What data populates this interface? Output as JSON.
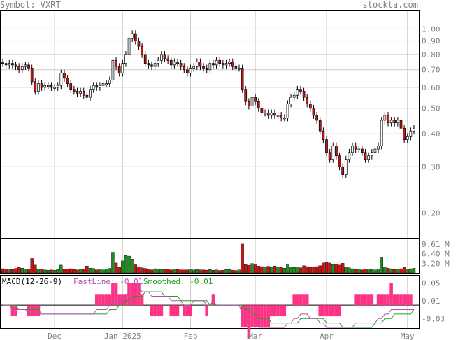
{
  "header": {
    "symbol_label": "Symbol: VXRT",
    "brand": "stockta.com"
  },
  "colors": {
    "up": "#228b22",
    "down": "#cc1111",
    "hist": "#ff3385",
    "fast": "#b050b0",
    "slow": "#20a020",
    "grid": "#cccccc",
    "text": "#808080"
  },
  "chart_data": [
    {
      "type": "candlestick",
      "title": "",
      "y_scale": "log",
      "ylim": [
        0.165,
        1.14
      ],
      "y_ticks": [
        1.0,
        0.9,
        0.8,
        0.7,
        0.6,
        0.5,
        0.4,
        0.3,
        0.2
      ],
      "y_tick_labels": [
        "1.00",
        "0.90",
        "0.80",
        "0.70",
        "0.60",
        "0.50",
        "0.40",
        "0.30",
        "0.20"
      ],
      "x_tick_labels": [
        "Dec",
        "Jan 2025",
        "Feb",
        "Mar",
        "Apr",
        "May"
      ],
      "x_tick_index": [
        16,
        37,
        58,
        78,
        100,
        125
      ],
      "close": [
        0.74,
        0.73,
        0.74,
        0.73,
        0.72,
        0.7,
        0.72,
        0.73,
        0.71,
        0.63,
        0.58,
        0.62,
        0.6,
        0.61,
        0.61,
        0.6,
        0.6,
        0.61,
        0.68,
        0.65,
        0.62,
        0.59,
        0.58,
        0.57,
        0.58,
        0.56,
        0.55,
        0.59,
        0.61,
        0.6,
        0.61,
        0.62,
        0.62,
        0.64,
        0.76,
        0.72,
        0.68,
        0.74,
        0.8,
        0.92,
        0.96,
        0.9,
        0.86,
        0.8,
        0.74,
        0.73,
        0.72,
        0.74,
        0.76,
        0.8,
        0.77,
        0.76,
        0.73,
        0.75,
        0.74,
        0.72,
        0.7,
        0.68,
        0.71,
        0.72,
        0.75,
        0.72,
        0.71,
        0.7,
        0.74,
        0.73,
        0.76,
        0.74,
        0.73,
        0.74,
        0.75,
        0.72,
        0.71,
        0.71,
        0.59,
        0.53,
        0.51,
        0.55,
        0.53,
        0.5,
        0.48,
        0.48,
        0.47,
        0.48,
        0.47,
        0.47,
        0.46,
        0.46,
        0.52,
        0.55,
        0.56,
        0.59,
        0.58,
        0.55,
        0.52,
        0.5,
        0.47,
        0.45,
        0.41,
        0.38,
        0.34,
        0.32,
        0.36,
        0.33,
        0.3,
        0.28,
        0.32,
        0.34,
        0.36,
        0.35,
        0.35,
        0.34,
        0.32,
        0.33,
        0.34,
        0.35,
        0.36,
        0.45,
        0.47,
        0.44,
        0.45,
        0.44,
        0.45,
        0.42,
        0.38,
        0.39,
        0.41,
        0.42
      ],
      "open": [
        0.75,
        0.74,
        0.73,
        0.74,
        0.73,
        0.72,
        0.7,
        0.72,
        0.73,
        0.71,
        0.63,
        0.58,
        0.62,
        0.6,
        0.61,
        0.61,
        0.6,
        0.6,
        0.61,
        0.68,
        0.65,
        0.62,
        0.59,
        0.58,
        0.57,
        0.58,
        0.56,
        0.55,
        0.59,
        0.61,
        0.6,
        0.61,
        0.62,
        0.62,
        0.64,
        0.76,
        0.72,
        0.68,
        0.74,
        0.8,
        0.92,
        0.96,
        0.9,
        0.86,
        0.8,
        0.74,
        0.73,
        0.72,
        0.74,
        0.76,
        0.8,
        0.77,
        0.76,
        0.73,
        0.75,
        0.74,
        0.72,
        0.7,
        0.68,
        0.71,
        0.72,
        0.75,
        0.72,
        0.71,
        0.7,
        0.74,
        0.73,
        0.76,
        0.74,
        0.73,
        0.74,
        0.75,
        0.72,
        0.71,
        0.71,
        0.59,
        0.53,
        0.51,
        0.55,
        0.53,
        0.5,
        0.48,
        0.48,
        0.47,
        0.48,
        0.47,
        0.47,
        0.46,
        0.46,
        0.52,
        0.55,
        0.56,
        0.59,
        0.58,
        0.55,
        0.52,
        0.5,
        0.47,
        0.45,
        0.41,
        0.38,
        0.34,
        0.32,
        0.36,
        0.33,
        0.3,
        0.28,
        0.32,
        0.34,
        0.36,
        0.35,
        0.35,
        0.34,
        0.32,
        0.33,
        0.34,
        0.35,
        0.36,
        0.45,
        0.47,
        0.44,
        0.45,
        0.44,
        0.45,
        0.42,
        0.38,
        0.39,
        0.41
      ]
    },
    {
      "type": "bar",
      "title": "",
      "ylim": [
        0,
        11
      ],
      "y_ticks": [
        9.61,
        6.4,
        3.2
      ],
      "y_tick_labels": [
        "9.61 M",
        "6.40 M",
        "3.20 M"
      ],
      "values": [
        1.4,
        1.2,
        1.3,
        1.1,
        1.5,
        2.0,
        1.6,
        1.3,
        1.2,
        4.8,
        2.6,
        1.3,
        1.1,
        1.0,
        0.9,
        1.0,
        0.9,
        1.1,
        2.6,
        1.3,
        1.2,
        1.4,
        1.1,
        1.0,
        1.3,
        1.2,
        2.3,
        1.6,
        1.5,
        1.0,
        1.2,
        1.0,
        1.2,
        1.5,
        6.9,
        3.3,
        1.8,
        4.0,
        5.8,
        5.6,
        4.6,
        2.7,
        2.0,
        1.7,
        1.5,
        1.2,
        1.0,
        1.4,
        1.3,
        1.2,
        1.1,
        1.2,
        1.0,
        1.3,
        1.1,
        1.0,
        1.0,
        1.0,
        1.2,
        1.0,
        1.1,
        1.0,
        1.0,
        0.9,
        1.1,
        0.9,
        1.0,
        0.8,
        0.9,
        1.1,
        1.1,
        0.9,
        0.8,
        1.0,
        9.61,
        2.8,
        2.5,
        3.1,
        2.7,
        2.3,
        2.1,
        2.0,
        2.2,
        1.9,
        2.3,
        2.0,
        1.8,
        1.6,
        3.0,
        2.0,
        1.8,
        2.0,
        1.7,
        2.4,
        2.1,
        2.0,
        1.9,
        2.1,
        2.4,
        3.3,
        3.5,
        3.3,
        2.8,
        3.0,
        2.6,
        3.2,
        2.0,
        1.7,
        1.4,
        1.1,
        1.2,
        1.0,
        1.2,
        1.3,
        1.1,
        1.0,
        1.3,
        5.2,
        2.0,
        1.6,
        1.4,
        1.1,
        1.2,
        1.4,
        1.8,
        1.3,
        1.4,
        1.6
      ]
    },
    {
      "type": "line",
      "title": "MACD(12-26-9)",
      "legend": [
        "FastLine: -0.01",
        "Smoothed: -0.01"
      ],
      "ylim": [
        -0.05,
        0.06
      ],
      "y_ticks": [
        0.05,
        0.01,
        -0.03
      ],
      "y_tick_labels": [
        "0.05",
        "0.01",
        "-0.03"
      ],
      "fast": [
        0.0,
        0.0,
        0.0,
        -0.01,
        -0.01,
        -0.01,
        -0.01,
        -0.01,
        -0.02,
        -0.02,
        -0.02,
        -0.02,
        -0.02,
        -0.02,
        -0.02,
        -0.02,
        -0.02,
        -0.02,
        -0.02,
        -0.02,
        -0.02,
        -0.02,
        -0.02,
        -0.02,
        -0.02,
        -0.02,
        -0.02,
        -0.02,
        -0.02,
        -0.01,
        -0.01,
        -0.01,
        -0.01,
        0.0,
        0.01,
        0.01,
        0.01,
        0.01,
        0.02,
        0.03,
        0.04,
        0.04,
        0.04,
        0.03,
        0.03,
        0.03,
        0.02,
        0.02,
        0.02,
        0.02,
        0.02,
        0.02,
        0.01,
        0.01,
        0.01,
        0.01,
        0.0,
        0.0,
        0.0,
        0.01,
        0.01,
        0.01,
        0.01,
        0.0,
        0.0,
        0.01,
        0.0,
        0.0,
        0.0,
        0.0,
        0.0,
        0.0,
        0.0,
        0.0,
        -0.02,
        -0.03,
        -0.04,
        -0.04,
        -0.04,
        -0.05,
        -0.05,
        -0.05,
        -0.05,
        -0.05,
        -0.05,
        -0.05,
        -0.05,
        -0.05,
        -0.04,
        -0.04,
        -0.03,
        -0.03,
        -0.02,
        -0.02,
        -0.02,
        -0.03,
        -0.03,
        -0.03,
        -0.04,
        -0.04,
        -0.05,
        -0.05,
        -0.05,
        -0.05,
        -0.05,
        -0.05,
        -0.05,
        -0.05,
        -0.05,
        -0.04,
        -0.04,
        -0.04,
        -0.04,
        -0.04,
        -0.04,
        -0.04,
        -0.03,
        -0.03,
        -0.02,
        -0.02,
        -0.01,
        -0.01,
        -0.01,
        -0.01,
        -0.01,
        -0.01,
        -0.01,
        -0.01
      ],
      "slow": [
        0.0,
        0.0,
        0.0,
        0.0,
        0.0,
        -0.01,
        -0.01,
        -0.01,
        -0.01,
        -0.01,
        -0.01,
        -0.01,
        -0.02,
        -0.02,
        -0.02,
        -0.02,
        -0.02,
        -0.02,
        -0.02,
        -0.02,
        -0.02,
        -0.02,
        -0.02,
        -0.02,
        -0.02,
        -0.02,
        -0.02,
        -0.02,
        -0.02,
        -0.02,
        -0.02,
        -0.02,
        -0.02,
        -0.01,
        -0.01,
        -0.01,
        0.0,
        0.0,
        0.01,
        0.01,
        0.02,
        0.02,
        0.02,
        0.02,
        0.03,
        0.03,
        0.03,
        0.03,
        0.03,
        0.03,
        0.02,
        0.02,
        0.02,
        0.02,
        0.02,
        0.01,
        0.01,
        0.01,
        0.01,
        0.01,
        0.01,
        0.01,
        0.01,
        0.01,
        0.0,
        0.0,
        0.0,
        0.0,
        0.0,
        0.0,
        0.0,
        0.0,
        0.0,
        0.0,
        0.0,
        -0.01,
        -0.01,
        -0.02,
        -0.02,
        -0.03,
        -0.03,
        -0.03,
        -0.03,
        -0.04,
        -0.04,
        -0.04,
        -0.04,
        -0.04,
        -0.04,
        -0.04,
        -0.04,
        -0.04,
        -0.03,
        -0.03,
        -0.03,
        -0.03,
        -0.03,
        -0.03,
        -0.03,
        -0.03,
        -0.04,
        -0.04,
        -0.04,
        -0.04,
        -0.04,
        -0.05,
        -0.05,
        -0.05,
        -0.05,
        -0.05,
        -0.05,
        -0.05,
        -0.05,
        -0.05,
        -0.05,
        -0.04,
        -0.04,
        -0.04,
        -0.03,
        -0.03,
        -0.03,
        -0.02,
        -0.02,
        -0.02,
        -0.02,
        -0.02,
        -0.02,
        -0.01
      ]
    }
  ]
}
